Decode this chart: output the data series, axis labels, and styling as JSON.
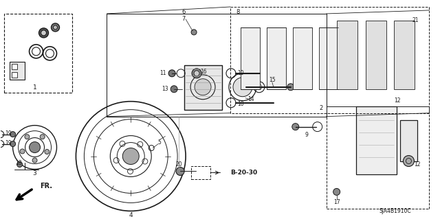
{
  "bg_color": "#ffffff",
  "fig_width": 6.4,
  "fig_height": 3.19,
  "dpi": 100,
  "diagram_code": "SJA4B1910C",
  "line_color": "#1a1a1a",
  "text_color": "#1a1a1a"
}
